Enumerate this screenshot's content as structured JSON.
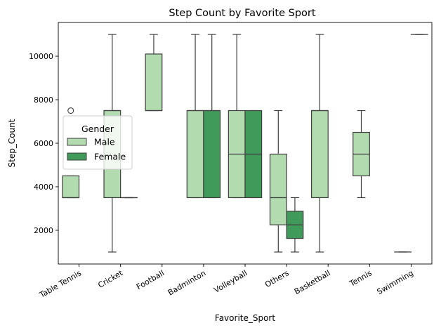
{
  "chart_data": {
    "type": "box",
    "title": "Step Count by Favorite Sport",
    "xlabel": "Favorite_Sport",
    "ylabel": "Step_Count",
    "ylim": [
      450,
      11550
    ],
    "yticks": [
      2000,
      4000,
      6000,
      8000,
      10000
    ],
    "categories": [
      "Table Tennis",
      "Cricket",
      "Football",
      "Badminton",
      "Volleyball",
      "Others",
      "Basketball",
      "Tennis",
      "Swimming"
    ],
    "legend": {
      "title": "Gender",
      "placement": "center-left",
      "entries": [
        "Male",
        "Female"
      ]
    },
    "series": [
      {
        "name": "Male",
        "color": "#b2dbb0",
        "boxes": [
          {
            "category": "Table Tennis",
            "whisker_low": 3500,
            "q1": 3500,
            "median": 3500,
            "q3": 4500,
            "whisker_high": 4500,
            "outliers": [
              7500
            ]
          },
          {
            "category": "Cricket",
            "whisker_low": 1000,
            "q1": 3500,
            "median": 7500,
            "q3": 7500,
            "whisker_high": 11000,
            "outliers": []
          },
          {
            "category": "Football",
            "whisker_low": 7500,
            "q1": 7500,
            "median": 7500,
            "q3": 10100,
            "whisker_high": 11000,
            "outliers": []
          },
          {
            "category": "Badminton",
            "whisker_low": 3500,
            "q1": 3500,
            "median": 7500,
            "q3": 7500,
            "whisker_high": 11000,
            "outliers": []
          },
          {
            "category": "Volleyball",
            "whisker_low": 3500,
            "q1": 3500,
            "median": 5500,
            "q3": 7500,
            "whisker_high": 11000,
            "outliers": []
          },
          {
            "category": "Others",
            "whisker_low": 1000,
            "q1": 2250,
            "median": 3500,
            "q3": 5500,
            "whisker_high": 7500,
            "outliers": []
          },
          {
            "category": "Basketball",
            "whisker_low": 1000,
            "q1": 3500,
            "median": 7500,
            "q3": 7500,
            "whisker_high": 11000,
            "outliers": []
          },
          {
            "category": "Tennis",
            "whisker_low": 3500,
            "q1": 4500,
            "median": 5500,
            "q3": 6500,
            "whisker_high": 7500,
            "outliers": []
          },
          {
            "category": "Swimming",
            "whisker_low": 1000,
            "q1": 1000,
            "median": 1000,
            "q3": 1000,
            "whisker_high": 1000,
            "outliers": []
          }
        ]
      },
      {
        "name": "Female",
        "color": "#409a59",
        "boxes": [
          {
            "category": "Cricket",
            "whisker_low": 3500,
            "q1": 3500,
            "median": 3500,
            "q3": 3500,
            "whisker_high": 3500,
            "outliers": []
          },
          {
            "category": "Badminton",
            "whisker_low": 3500,
            "q1": 3500,
            "median": 7500,
            "q3": 7500,
            "whisker_high": 11000,
            "outliers": []
          },
          {
            "category": "Volleyball",
            "whisker_low": 3500,
            "q1": 3500,
            "median": 5500,
            "q3": 7500,
            "whisker_high": 7500,
            "outliers": []
          },
          {
            "category": "Others",
            "whisker_low": 1000,
            "q1": 1625,
            "median": 2250,
            "q3": 2875,
            "whisker_high": 3500,
            "outliers": []
          },
          {
            "category": "Swimming",
            "whisker_low": 11000,
            "q1": 11000,
            "median": 11000,
            "q3": 11000,
            "whisker_high": 11000,
            "outliers": []
          }
        ]
      }
    ],
    "grid": false
  }
}
